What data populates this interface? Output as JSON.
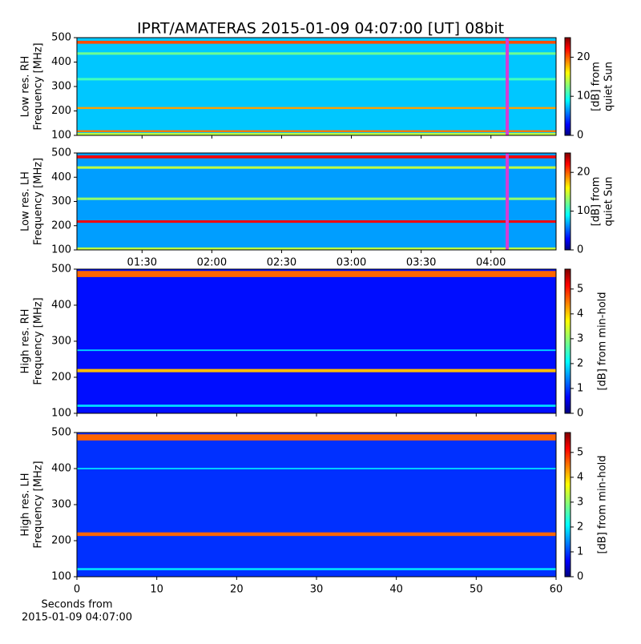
{
  "chart_data": {
    "type": "heatmap",
    "title": "IPRT/AMATERAS 2015-01-09 04:07:00 [UT]   08bit",
    "colormap": "jet",
    "time_axis": {
      "xlim": [
        62,
        268
      ],
      "xticks": [
        {
          "value": 90,
          "label": "01:30"
        },
        {
          "value": 120,
          "label": "02:00"
        },
        {
          "value": 150,
          "label": "02:30"
        },
        {
          "value": 180,
          "label": "03:00"
        },
        {
          "value": 210,
          "label": "03:30"
        },
        {
          "value": 240,
          "label": "04:00"
        }
      ],
      "marker": 247,
      "marker_color": "#d63cd6"
    },
    "seconds_axis": {
      "xlim": [
        0,
        60
      ],
      "xticks": [
        0,
        10,
        20,
        30,
        40,
        50,
        60
      ],
      "label": [
        "Seconds from",
        "2015-01-09 04:07:00"
      ]
    },
    "panels": [
      {
        "ylabel": [
          "Low res. RH",
          "Frequency [MHz]"
        ],
        "colorbar_label": [
          "[dB] from",
          "quiet Sun"
        ],
        "ylim": [
          100,
          500
        ],
        "yticks": [
          100,
          200,
          300,
          400,
          500
        ],
        "clim": [
          0,
          25
        ],
        "cticks": [
          0,
          10,
          20
        ],
        "background": 8,
        "bands": [
          {
            "lo": 475,
            "hi": 487,
            "value": 20
          },
          {
            "lo": 430,
            "hi": 440,
            "value": 12
          },
          {
            "lo": 325,
            "hi": 335,
            "value": 11
          },
          {
            "lo": 208,
            "hi": 216,
            "value": 18
          },
          {
            "lo": 113,
            "hi": 121,
            "value": 19
          },
          {
            "lo": 100,
            "hi": 110,
            "value": 14
          }
        ]
      },
      {
        "ylabel": [
          "Low res. LH",
          "Frequency [MHz]"
        ],
        "colorbar_label": [
          "[dB] from",
          "quiet Sun"
        ],
        "ylim": [
          100,
          500
        ],
        "yticks": [
          100,
          200,
          300,
          400,
          500
        ],
        "clim": [
          0,
          25
        ],
        "cticks": [
          0,
          10,
          20
        ],
        "background": 7,
        "bands": [
          {
            "lo": 478,
            "hi": 490,
            "value": 22
          },
          {
            "lo": 435,
            "hi": 445,
            "value": 14
          },
          {
            "lo": 306,
            "hi": 316,
            "value": 13
          },
          {
            "lo": 212,
            "hi": 222,
            "value": 22
          },
          {
            "lo": 100,
            "hi": 110,
            "value": 14
          }
        ]
      },
      {
        "ylabel": [
          "High res. RH",
          "Frequency [MHz]"
        ],
        "colorbar_label": [
          "[dB] from min-hold"
        ],
        "ylim": [
          100,
          500
        ],
        "yticks": [
          100,
          200,
          300,
          400,
          500
        ],
        "clim": [
          0,
          5.8
        ],
        "cticks": [
          0,
          1,
          2,
          3,
          4,
          5
        ],
        "background": 0.8,
        "bands": [
          {
            "lo": 478,
            "hi": 495,
            "value": 4.5
          },
          {
            "lo": 214,
            "hi": 223,
            "value": 4
          },
          {
            "lo": 273,
            "hi": 277,
            "value": 2
          },
          {
            "lo": 118,
            "hi": 124,
            "value": 2
          }
        ]
      },
      {
        "ylabel": [
          "High res. LH",
          "Frequency [MHz]"
        ],
        "colorbar_label": [
          "[dB] from min-hold"
        ],
        "ylim": [
          100,
          500
        ],
        "yticks": [
          100,
          200,
          300,
          400,
          500
        ],
        "clim": [
          0,
          5.8
        ],
        "cticks": [
          0,
          1,
          2,
          3,
          4,
          5
        ],
        "background": 1,
        "bands": [
          {
            "lo": 478,
            "hi": 495,
            "value": 4.5
          },
          {
            "lo": 213,
            "hi": 223,
            "value": 4.5
          },
          {
            "lo": 398,
            "hi": 402,
            "value": 2
          },
          {
            "lo": 118,
            "hi": 124,
            "value": 2
          }
        ]
      }
    ]
  }
}
